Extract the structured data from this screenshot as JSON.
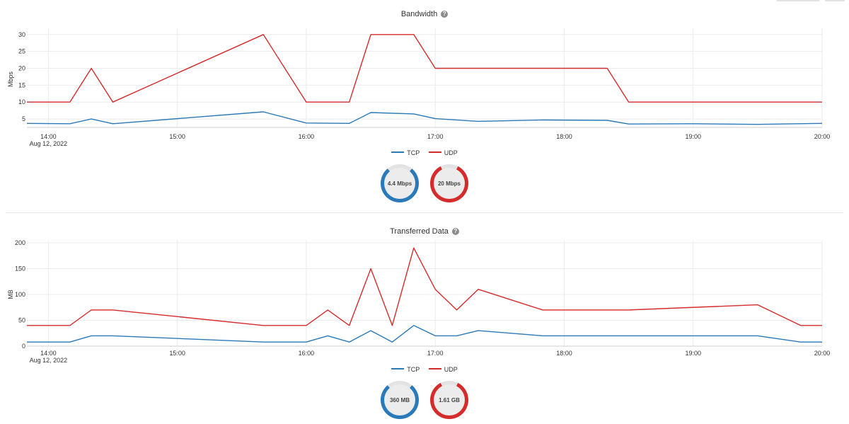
{
  "colors": {
    "tcp": "#2a7ab9",
    "udp": "#d62b2b",
    "grid": "#ebebeb",
    "gauge_track": "#e3e3e3"
  },
  "help_icon": "question-circle-icon",
  "charts": [
    {
      "title": "Bandwidth",
      "legend": [
        {
          "label": "TCP",
          "color": "#2a7ab9"
        },
        {
          "label": "UDP",
          "color": "#d62b2b"
        }
      ],
      "gauges": [
        {
          "label": "4.4 Mbps",
          "color": "#2a7ab9",
          "fill": 0.78
        },
        {
          "label": "20 Mbps",
          "color": "#d62b2b",
          "fill": 0.85
        }
      ]
    },
    {
      "title": "Transferred Data",
      "legend": [
        {
          "label": "TCP",
          "color": "#2a7ab9"
        },
        {
          "label": "UDP",
          "color": "#d62b2b"
        }
      ],
      "gauges": [
        {
          "label": "360 MB",
          "color": "#2a7ab9",
          "fill": 0.78
        },
        {
          "label": "1.61 GB",
          "color": "#d62b2b",
          "fill": 0.85
        }
      ]
    }
  ],
  "chart_data": [
    {
      "type": "line",
      "title": "Bandwidth",
      "ylabel": "Mbps",
      "xlabel": "",
      "x_ticks": [
        "14:00",
        "15:00",
        "16:00",
        "17:00",
        "18:00",
        "19:00",
        "20:00"
      ],
      "x_date_label": "Aug 12, 2022",
      "y_ticks": [
        5,
        10,
        15,
        20,
        25,
        30
      ],
      "ylim": [
        2.5,
        31
      ],
      "xlim": [
        "13:50",
        "20:00"
      ],
      "grid": true,
      "legend_position": "bottom",
      "x": [
        "13:50",
        "14:10",
        "14:20",
        "14:30",
        "15:40",
        "16:00",
        "16:20",
        "16:30",
        "16:50",
        "17:00",
        "17:20",
        "17:50",
        "18:20",
        "18:30",
        "19:00",
        "19:30",
        "20:00"
      ],
      "series": [
        {
          "name": "TCP",
          "color": "#2a7ab9",
          "values": [
            3.7,
            3.6,
            5,
            3.6,
            7.1,
            3.8,
            3.7,
            6.9,
            6.5,
            5.1,
            4.3,
            4.7,
            4.6,
            3.5,
            3.6,
            3.4,
            3.7
          ]
        },
        {
          "name": "UDP",
          "color": "#d62b2b",
          "values": [
            10,
            10,
            20,
            10,
            30,
            10,
            10,
            30,
            30,
            20,
            20,
            20,
            20,
            10,
            10,
            10,
            10
          ]
        }
      ]
    },
    {
      "type": "line",
      "title": "Transferred Data",
      "ylabel": "MB",
      "xlabel": "",
      "x_ticks": [
        "14:00",
        "15:00",
        "16:00",
        "17:00",
        "18:00",
        "19:00",
        "20:00"
      ],
      "x_date_label": "Aug 12, 2022",
      "y_ticks": [
        0,
        50,
        100,
        150,
        200
      ],
      "ylim": [
        0,
        200
      ],
      "xlim": [
        "13:50",
        "20:00"
      ],
      "grid": true,
      "legend_position": "bottom",
      "x": [
        "13:50",
        "14:10",
        "14:20",
        "14:30",
        "15:40",
        "16:00",
        "16:10",
        "16:20",
        "16:30",
        "16:40",
        "16:50",
        "17:00",
        "17:10",
        "17:20",
        "17:50",
        "18:30",
        "19:30",
        "19:50",
        "20:00"
      ],
      "series": [
        {
          "name": "TCP",
          "color": "#2a7ab9",
          "values": [
            8,
            8,
            20,
            20,
            8,
            8,
            20,
            8,
            30,
            8,
            40,
            20,
            20,
            30,
            20,
            20,
            20,
            8,
            8
          ]
        },
        {
          "name": "UDP",
          "color": "#d62b2b",
          "values": [
            40,
            40,
            70,
            70,
            40,
            40,
            70,
            40,
            150,
            40,
            190,
            110,
            70,
            110,
            70,
            70,
            80,
            40,
            40
          ]
        }
      ]
    }
  ]
}
